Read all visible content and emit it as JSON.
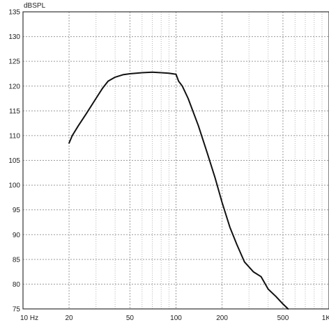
{
  "chart_data": {
    "type": "line",
    "title": "",
    "ylabel": "dBSPL",
    "xlabel": "",
    "x_scale": "log",
    "xlim": [
      10,
      1000
    ],
    "ylim": [
      75,
      135
    ],
    "grid": true,
    "x_ticks": [
      {
        "value": 10,
        "label": "10  Hz"
      },
      {
        "value": 20,
        "label": "20"
      },
      {
        "value": 50,
        "label": "50"
      },
      {
        "value": 100,
        "label": "100"
      },
      {
        "value": 200,
        "label": "200"
      },
      {
        "value": 500,
        "label": "500"
      },
      {
        "value": 1000,
        "label": "1K"
      }
    ],
    "y_ticks": [
      75,
      80,
      85,
      90,
      95,
      100,
      105,
      110,
      115,
      120,
      125,
      130,
      135
    ],
    "series": [
      {
        "color": "#111111",
        "x": [
          20,
          21,
          23,
          26,
          30,
          33,
          36,
          40,
          45,
          50,
          60,
          70,
          80,
          90,
          100,
          104,
          110,
          120,
          140,
          160,
          180,
          200,
          225,
          250,
          280,
          320,
          360,
          400,
          450,
          500,
          540
        ],
        "y": [
          108.5,
          110.0,
          112.0,
          114.5,
          117.5,
          119.5,
          121.0,
          121.8,
          122.3,
          122.5,
          122.7,
          122.8,
          122.7,
          122.6,
          122.4,
          121.0,
          120.0,
          117.5,
          112.0,
          106.5,
          101.5,
          96.5,
          91.5,
          88.0,
          84.5,
          82.5,
          81.5,
          79.0,
          77.5,
          76.0,
          75.0
        ]
      }
    ]
  }
}
